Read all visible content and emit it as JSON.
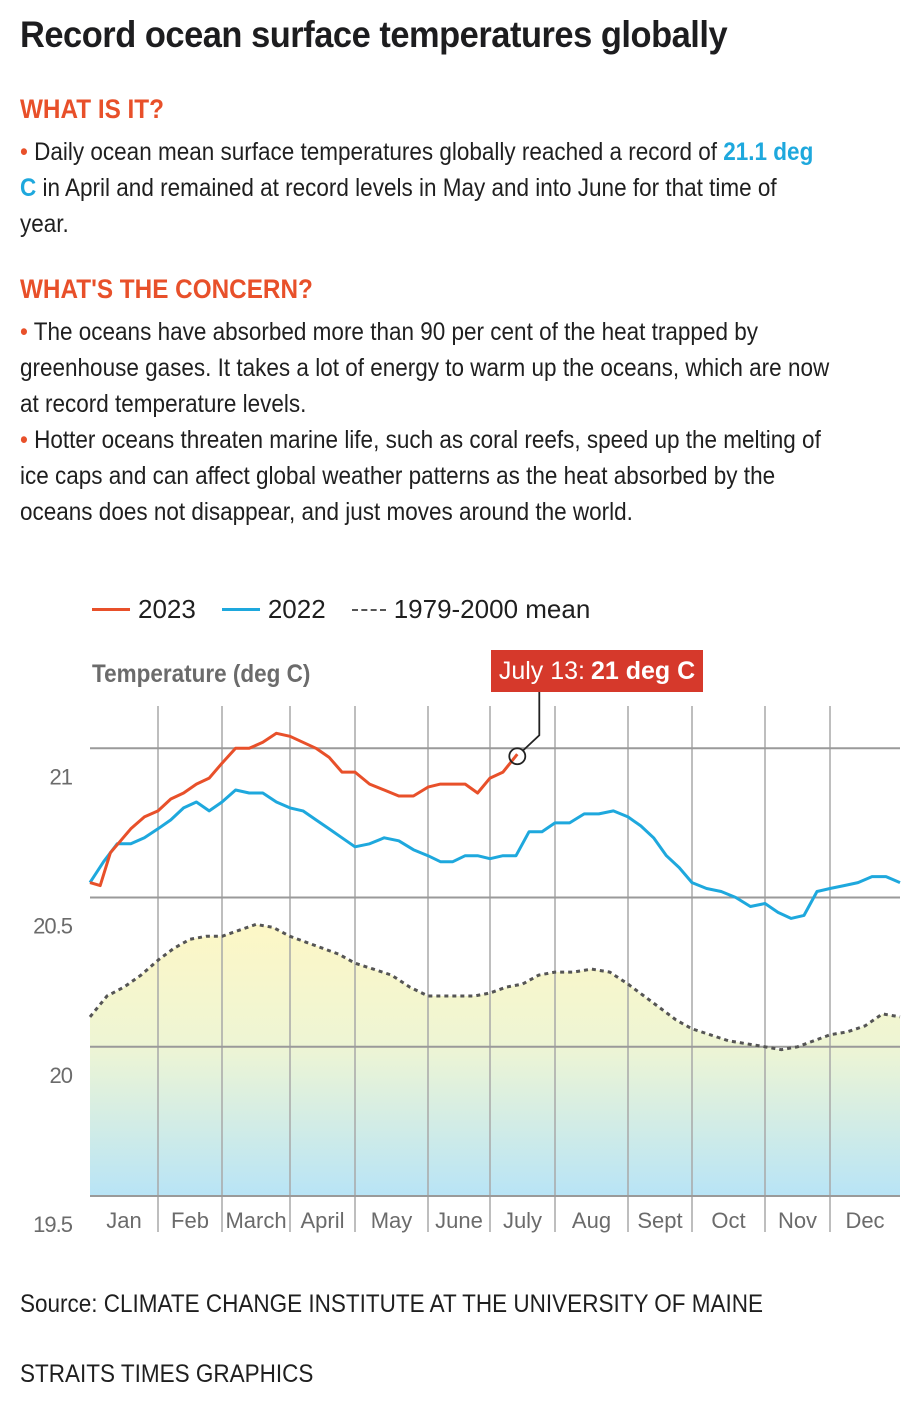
{
  "title": "Record ocean surface temperatures globally",
  "sections": [
    {
      "heading": "WHAT IS IT?",
      "bullets": [
        {
          "pre": "Daily ocean mean surface temperatures globally reached a record of ",
          "highlight": "21.1 deg C",
          "post": " in April and remained at record levels in May and into June for that time of year."
        }
      ]
    },
    {
      "heading": "WHAT'S THE CONCERN?",
      "bullets": [
        {
          "pre": "The oceans have absorbed more than 90 per cent of the heat trapped by greenhouse gases. It takes a lot of energy to warm up the oceans, which are now at record temperature levels.",
          "highlight": "",
          "post": ""
        },
        {
          "pre": "Hotter oceans threaten marine life, such as coral reefs, speed up the melting of ice caps and can affect global weather patterns as the heat absorbed by the oceans does not disappear, and just moves around the world.",
          "highlight": "",
          "post": ""
        }
      ]
    }
  ],
  "bullet_glyph": "•",
  "colors": {
    "accent_orange": "#e8502a",
    "highlight_blue": "#1ea8dd",
    "series_2023": "#e8502a",
    "series_2022": "#1ea8dd",
    "series_mean": "#555555",
    "callout_bg": "#d6392b",
    "grid": "#9a9a9a",
    "fill_top": "#fbf6c8",
    "fill_bottom": "#b8e4f6"
  },
  "callout": {
    "date": "July 13:",
    "value": "21 deg C"
  },
  "source": "Source: CLIMATE CHANGE INSTITUTE AT THE UNIVERSITY OF MAINE",
  "credit": "STRAITS TIMES GRAPHICS",
  "chart_data": {
    "type": "line",
    "title": "",
    "ylabel": "Temperature (deg C)",
    "xlabel": "",
    "ylim": [
      19.5,
      21.2
    ],
    "yticks": [
      19.5,
      20,
      20.5,
      21
    ],
    "ytick_labels": [
      "19.5",
      "20",
      "20.5",
      "21"
    ],
    "categories": [
      "Jan",
      "Feb",
      "March",
      "April",
      "May",
      "June",
      "July",
      "Aug",
      "Sept",
      "Oct",
      "Nov",
      "Dec"
    ],
    "grid": true,
    "legend": "top-left",
    "x_unit": "month (fractional, 0 = Jan 1, 12 = Dec 31)",
    "series": [
      {
        "name": "2023",
        "style": "solid",
        "x": [
          0,
          0.15,
          0.3,
          0.45,
          0.6,
          0.8,
          1.0,
          1.2,
          1.4,
          1.6,
          1.8,
          2.0,
          2.2,
          2.4,
          2.6,
          2.8,
          3.0,
          3.2,
          3.4,
          3.6,
          3.8,
          4.0,
          4.2,
          4.4,
          4.6,
          4.8,
          5.0,
          5.2,
          5.4,
          5.6,
          5.8,
          6.0,
          6.2,
          6.42
        ],
        "values": [
          20.55,
          20.54,
          20.65,
          20.69,
          20.73,
          20.77,
          20.79,
          20.83,
          20.85,
          20.88,
          20.9,
          20.95,
          21.0,
          21.0,
          21.02,
          21.05,
          21.04,
          21.02,
          21.0,
          20.97,
          20.92,
          20.92,
          20.88,
          20.86,
          20.84,
          20.84,
          20.87,
          20.88,
          20.88,
          20.88,
          20.85,
          20.9,
          20.92,
          20.98
        ]
      },
      {
        "name": "2022",
        "style": "solid",
        "x": [
          0,
          0.2,
          0.4,
          0.6,
          0.8,
          1.0,
          1.2,
          1.4,
          1.6,
          1.8,
          2.0,
          2.2,
          2.4,
          2.6,
          2.8,
          3.0,
          3.2,
          3.4,
          3.6,
          3.8,
          4.0,
          4.2,
          4.4,
          4.6,
          4.8,
          5.0,
          5.2,
          5.4,
          5.6,
          5.8,
          6.0,
          6.2,
          6.4,
          6.6,
          6.8,
          7.0,
          7.2,
          7.4,
          7.6,
          7.8,
          8.0,
          8.2,
          8.4,
          8.6,
          8.8,
          9.0,
          9.2,
          9.4,
          9.6,
          9.8,
          10.0,
          10.2,
          10.4,
          10.6,
          10.8,
          11.0,
          11.2,
          11.4,
          11.6,
          11.8,
          12.0
        ],
        "values": [
          20.55,
          20.62,
          20.68,
          20.68,
          20.7,
          20.73,
          20.76,
          20.8,
          20.82,
          20.79,
          20.82,
          20.86,
          20.85,
          20.85,
          20.82,
          20.8,
          20.79,
          20.76,
          20.73,
          20.7,
          20.67,
          20.68,
          20.7,
          20.69,
          20.66,
          20.64,
          20.62,
          20.62,
          20.64,
          20.64,
          20.63,
          20.64,
          20.64,
          20.72,
          20.72,
          20.75,
          20.75,
          20.78,
          20.78,
          20.79,
          20.77,
          20.74,
          20.7,
          20.64,
          20.6,
          20.55,
          20.53,
          20.52,
          20.5,
          20.47,
          20.48,
          20.45,
          20.43,
          20.44,
          20.52,
          20.53,
          20.54,
          20.55,
          20.57,
          20.57,
          20.55
        ]
      },
      {
        "name": "1979-2000 mean",
        "style": "dashed",
        "x": [
          0,
          0.25,
          0.5,
          0.75,
          1.0,
          1.25,
          1.5,
          1.75,
          2.0,
          2.25,
          2.5,
          2.75,
          3.0,
          3.25,
          3.5,
          3.75,
          4.0,
          4.25,
          4.5,
          4.75,
          5.0,
          5.25,
          5.5,
          5.75,
          6.0,
          6.25,
          6.5,
          6.75,
          7.0,
          7.25,
          7.5,
          7.75,
          8.0,
          8.25,
          8.5,
          8.75,
          9.0,
          9.25,
          9.5,
          9.75,
          10.0,
          10.25,
          10.5,
          10.75,
          11.0,
          11.25,
          11.5,
          11.75,
          12.0
        ],
        "values": [
          20.1,
          20.17,
          20.2,
          20.24,
          20.29,
          20.33,
          20.36,
          20.37,
          20.37,
          20.39,
          20.41,
          20.4,
          20.37,
          20.35,
          20.33,
          20.31,
          20.28,
          20.26,
          20.24,
          20.2,
          20.17,
          20.17,
          20.17,
          20.17,
          20.18,
          20.2,
          20.21,
          20.24,
          20.25,
          20.25,
          20.26,
          20.25,
          20.21,
          20.17,
          20.13,
          20.09,
          20.06,
          20.04,
          20.02,
          20.01,
          20.0,
          19.99,
          20.0,
          20.02,
          20.04,
          20.05,
          20.07,
          20.11,
          20.1
        ]
      }
    ],
    "annotation": {
      "series": "2023",
      "x": 6.42,
      "value": 21.0,
      "label": "July 13: 21 deg C"
    }
  }
}
